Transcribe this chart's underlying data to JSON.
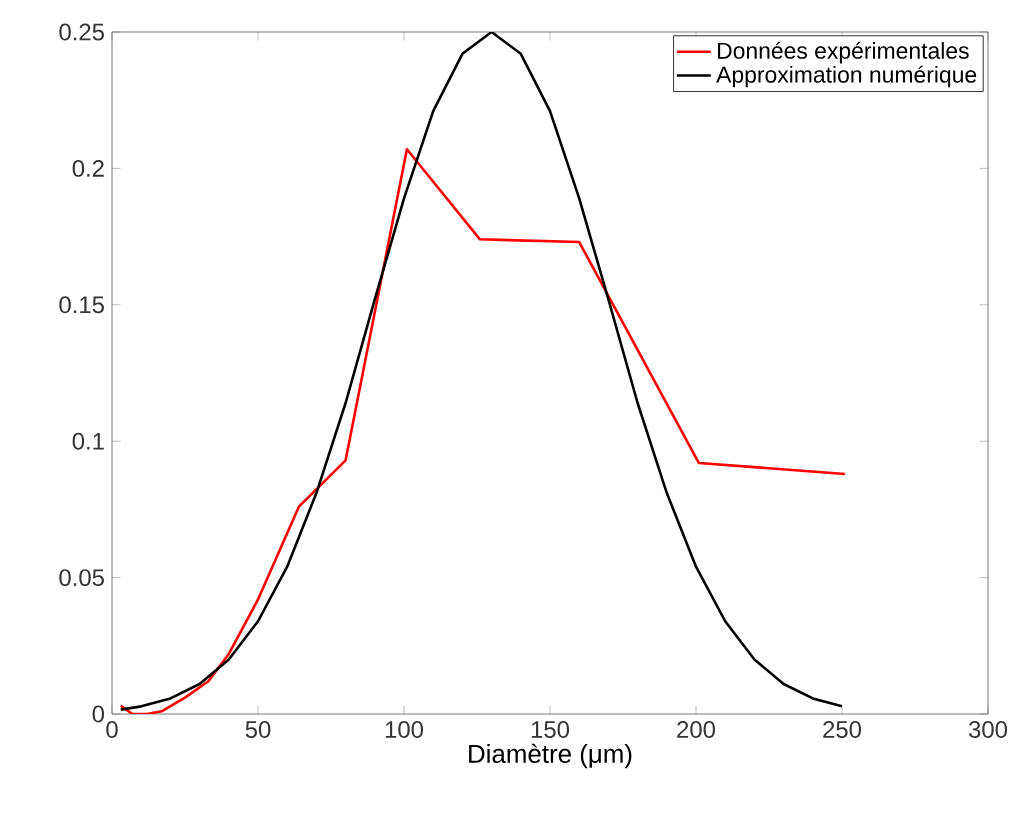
{
  "chart_data": {
    "type": "line",
    "xlabel": "Diamètre (μm)",
    "xlim": [
      0,
      300
    ],
    "xticks": [
      0,
      50,
      100,
      150,
      200,
      250,
      300
    ],
    "ylim": [
      0,
      0.25
    ],
    "yticks": [
      0,
      0.05,
      0.1,
      0.15,
      0.2,
      0.25
    ],
    "grid": false,
    "legend": "top right",
    "marker": "none",
    "line_style": "solid",
    "series": [
      {
        "name": "Données expérimentales",
        "color": "#ff0000",
        "x": [
          3,
          7,
          12,
          17,
          25,
          33,
          40,
          50,
          64,
          80,
          101,
          126,
          160,
          201,
          251
        ],
        "values": [
          0.003,
          0,
          0,
          0.001,
          0.006,
          0.012,
          0.022,
          0.042,
          0.076,
          0.093,
          0.207,
          0.174,
          0.173,
          0.092,
          0.088
        ]
      },
      {
        "name": "Approximation numérique",
        "color": "#000000",
        "x": [
          3,
          10,
          20,
          30,
          40,
          50,
          60,
          70,
          80,
          90,
          100,
          110,
          120,
          130,
          140,
          150,
          160,
          170,
          180,
          190,
          200,
          210,
          220,
          230,
          240,
          250
        ],
        "values": [
          0.0016,
          0.0028,
          0.0057,
          0.011,
          0.02,
          0.034,
          0.054,
          0.081,
          0.114,
          0.152,
          0.189,
          0.221,
          0.242,
          0.25,
          0.242,
          0.221,
          0.189,
          0.152,
          0.114,
          0.081,
          0.054,
          0.034,
          0.02,
          0.011,
          0.0057,
          0.0028
        ]
      }
    ]
  }
}
